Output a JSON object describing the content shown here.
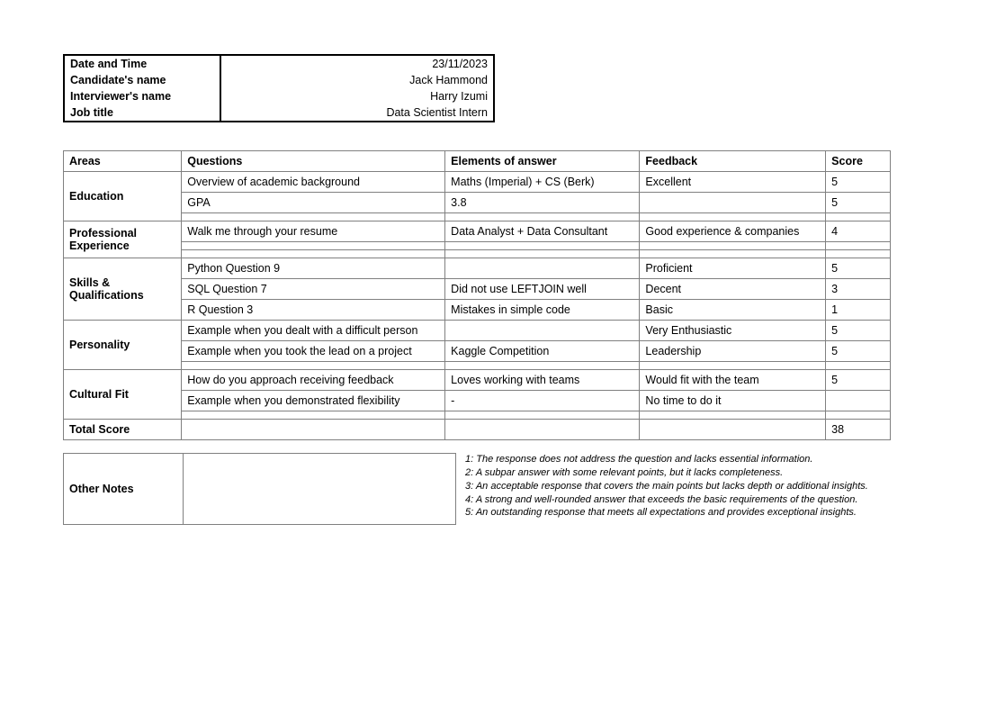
{
  "header": {
    "date_label": "Date and Time",
    "candidate_label": "Candidate's name",
    "interviewer_label": "Interviewer's name",
    "jobtitle_label": "Job title",
    "date_value": "23/11/2023",
    "candidate_value": "Jack Hammond",
    "interviewer_value": "Harry Izumi",
    "jobtitle_value": "Data Scientist Intern"
  },
  "columns": {
    "areas": "Areas",
    "questions": "Questions",
    "elements": "Elements of answer",
    "feedback": "Feedback",
    "score": "Score"
  },
  "sections": {
    "education": {
      "title": "Education",
      "rows": [
        {
          "q": "Overview of academic background",
          "e": "Maths (Imperial) + CS (Berk)",
          "f": "Excellent",
          "s": "5"
        },
        {
          "q": "GPA",
          "e": "3.8",
          "f": "",
          "s": "5"
        },
        {
          "q": "",
          "e": "",
          "f": "",
          "s": ""
        }
      ]
    },
    "prof": {
      "title": "Professional Experience",
      "rows": [
        {
          "q": "Walk me through your resume",
          "e": "Data Analyst + Data Consultant",
          "f": "Good experience & companies",
          "s": "4"
        },
        {
          "q": "",
          "e": "",
          "f": "",
          "s": ""
        },
        {
          "q": "",
          "e": "",
          "f": "",
          "s": ""
        }
      ]
    },
    "skills": {
      "title": "Skills & Qualifications",
      "rows": [
        {
          "q": "Python Question 9",
          "e": "",
          "f": "Proficient",
          "s": "5"
        },
        {
          "q": "SQL Question 7",
          "e": "Did not use LEFTJOIN well",
          "f": "Decent",
          "s": "3"
        },
        {
          "q": "R Question 3",
          "e": "Mistakes in simple code",
          "f": "Basic",
          "s": "1"
        }
      ]
    },
    "personality": {
      "title": "Personality",
      "rows": [
        {
          "q": "Example when you dealt with a difficult person",
          "e": "",
          "f": "Very Enthusiastic",
          "s": "5"
        },
        {
          "q": "Example when you took the lead on a project",
          "e": "Kaggle Competition",
          "f": "Leadership",
          "s": "5"
        },
        {
          "q": "",
          "e": "",
          "f": "",
          "s": ""
        }
      ]
    },
    "cultural": {
      "title": "Cultural Fit",
      "rows": [
        {
          "q": "How do you approach receiving feedback",
          "e": "Loves working with teams",
          "f": "Would fit with the team",
          "s": "5"
        },
        {
          "q": "Example when you demonstrated flexibility",
          "e": "-",
          "f": "No time to do it",
          "s": ""
        },
        {
          "q": "",
          "e": "",
          "f": "",
          "s": ""
        }
      ]
    }
  },
  "total": {
    "label": "Total Score",
    "value": "38"
  },
  "notes_label": "Other Notes",
  "legend": {
    "l1": "1: The response does not address the question and lacks essential information.",
    "l2": "2: A subpar answer with some relevant points, but it lacks completeness.",
    "l3": "3: An acceptable response that covers the main points but lacks depth or additional insights.",
    "l4": "4: A strong and well-rounded answer that exceeds the basic requirements of the question.",
    "l5": "5: An outstanding response that  meets all expectations and provides exceptional insights."
  }
}
